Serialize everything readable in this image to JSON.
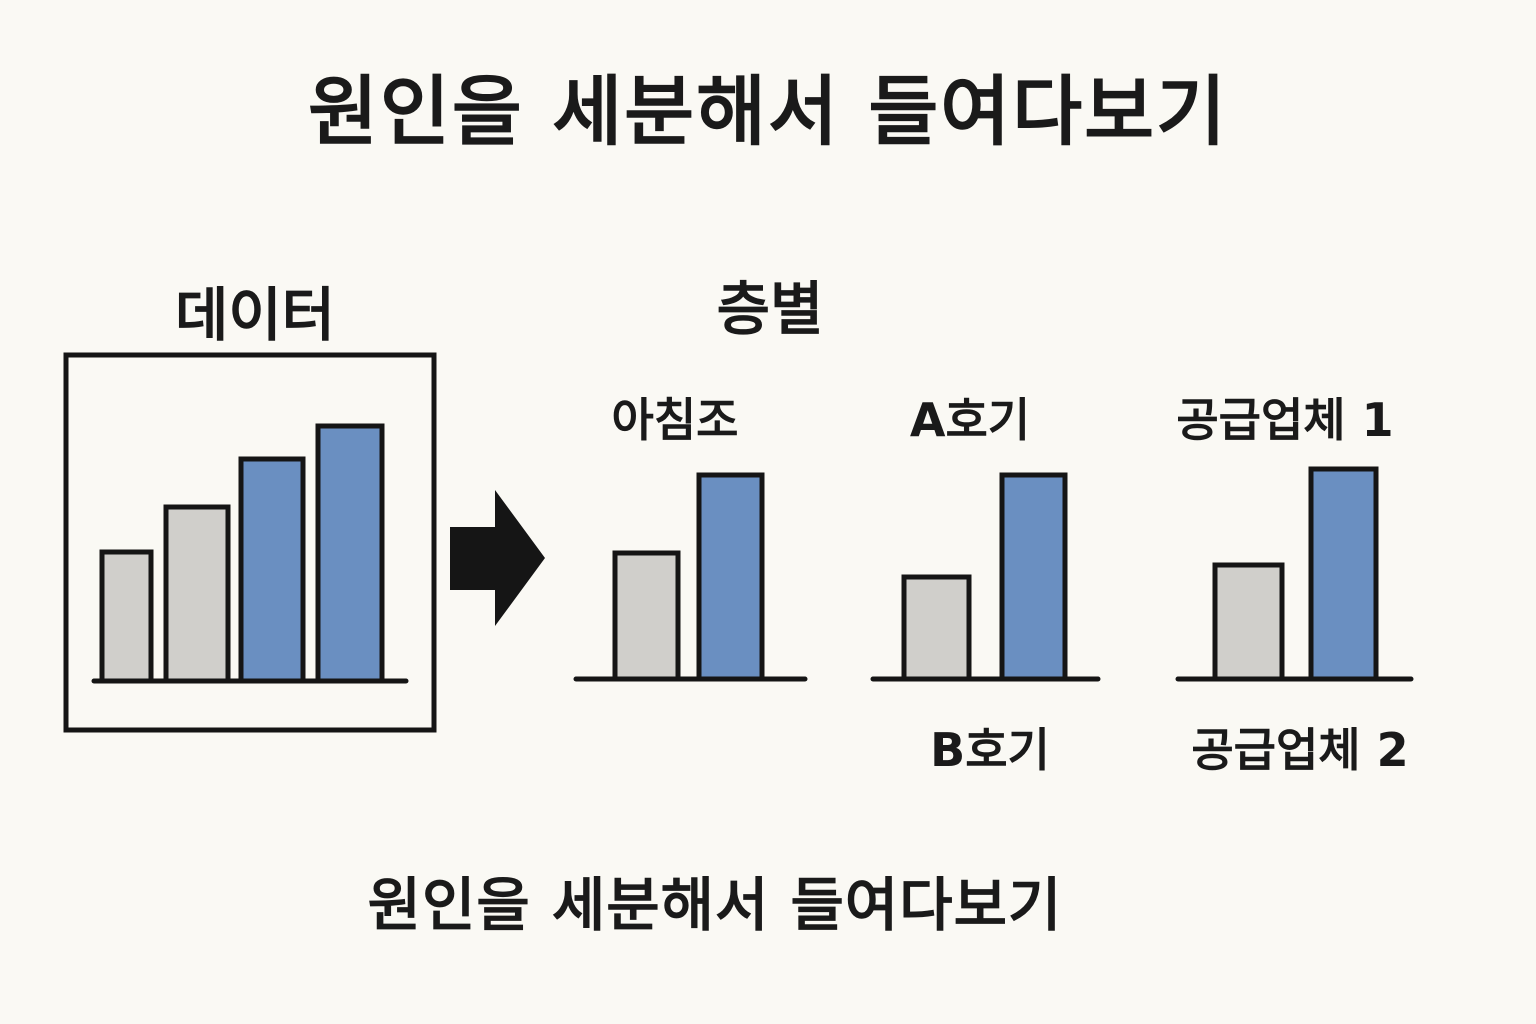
{
  "header": {
    "title": "원인을 세분해서 들여다보기"
  },
  "footer": {
    "caption": "원인을 세분해서 들여다보기"
  },
  "data_panel": {
    "label": "데이터"
  },
  "stratification": {
    "label": "층별",
    "groups": [
      {
        "label": "아침조",
        "sub_label": ""
      },
      {
        "label": "A호기",
        "sub_label": "B호기"
      },
      {
        "label": "공급업체 1",
        "sub_label": "공급업체 2"
      }
    ]
  },
  "colors": {
    "gray_bar": "#d0cfcb",
    "blue_bar": "#6a8fc1",
    "outline": "#151515",
    "background": "#faf9f4"
  },
  "icons": {
    "arrow": "right-arrow-icon"
  },
  "chart_data": [
    {
      "type": "bar",
      "name": "data-overview",
      "values": [
        43,
        58,
        74,
        85
      ],
      "colors": [
        "gray",
        "gray",
        "blue",
        "blue"
      ],
      "ylim": [
        0,
        100
      ]
    },
    {
      "type": "bar",
      "name": "stratum-morning-shift",
      "values": [
        42,
        68
      ],
      "colors": [
        "gray",
        "blue"
      ],
      "ylim": [
        0,
        100
      ]
    },
    {
      "type": "bar",
      "name": "stratum-machine",
      "values": [
        34,
        68
      ],
      "colors": [
        "gray",
        "blue"
      ],
      "ylim": [
        0,
        100
      ]
    },
    {
      "type": "bar",
      "name": "stratum-supplier",
      "values": [
        38,
        70
      ],
      "colors": [
        "gray",
        "blue"
      ],
      "ylim": [
        0,
        100
      ]
    }
  ]
}
